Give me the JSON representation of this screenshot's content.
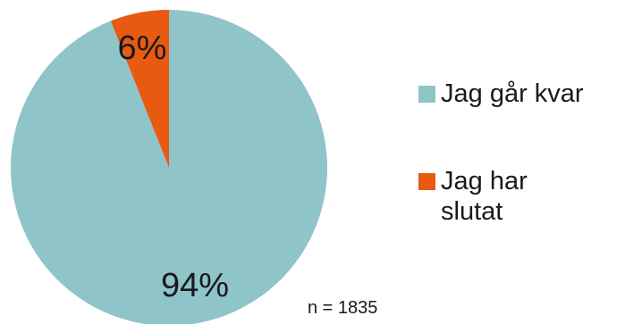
{
  "chart_data": {
    "type": "pie",
    "slices": [
      {
        "label": "Jag går kvar",
        "value": 94,
        "value_label": "94%",
        "color": "#8fc4c9"
      },
      {
        "label": "Jag har slutat",
        "value": 6,
        "value_label": "6%",
        "color": "#e85a12"
      }
    ],
    "legend_placement": "right",
    "annotation": "n = 1835"
  }
}
